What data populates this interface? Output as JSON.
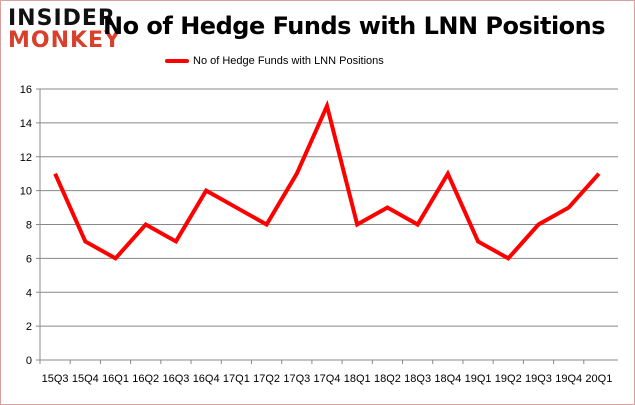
{
  "logo": {
    "line1": "INSIDER",
    "line2": "MONKEY"
  },
  "chart_data": {
    "type": "line",
    "title": "No of Hedge Funds with LNN Positions",
    "xlabel": "",
    "ylabel": "",
    "categories": [
      "15Q3",
      "15Q4",
      "16Q1",
      "16Q2",
      "16Q3",
      "16Q4",
      "17Q1",
      "17Q2",
      "17Q3",
      "17Q4",
      "18Q1",
      "18Q2",
      "18Q3",
      "18Q4",
      "19Q1",
      "19Q2",
      "19Q3",
      "19Q4",
      "20Q1"
    ],
    "series": [
      {
        "name": "No of Hedge Funds with LNN Positions",
        "color": "#ff0000",
        "values": [
          11,
          7,
          6,
          8,
          7,
          10,
          9,
          8,
          11,
          15,
          8,
          9,
          8,
          11,
          7,
          6,
          8,
          9,
          11
        ]
      }
    ],
    "ylim": [
      0,
      16
    ],
    "yticks": [
      0,
      2,
      4,
      6,
      8,
      10,
      12,
      14,
      16
    ],
    "grid": true,
    "legend": "top-center"
  }
}
